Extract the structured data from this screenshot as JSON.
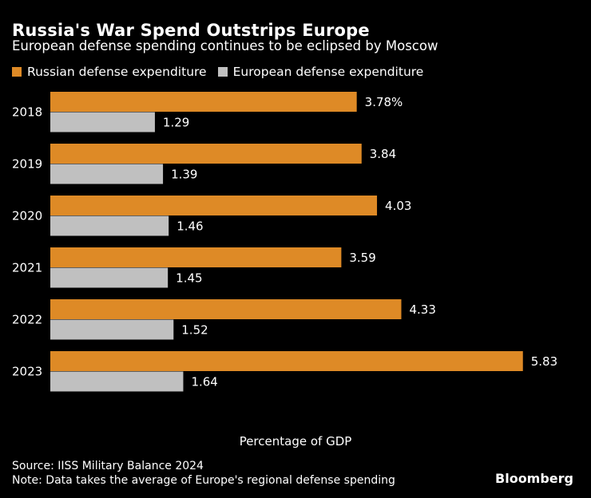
{
  "chart_data": {
    "type": "bar",
    "orientation": "horizontal",
    "title": "Russia's War Spend Outstrips Europe",
    "subtitle": "European defense spending continues to be eclipsed by Moscow",
    "categories": [
      "2018",
      "2019",
      "2020",
      "2021",
      "2022",
      "2023"
    ],
    "series": [
      {
        "name": "Russian defense expenditure",
        "color": "#de8a26",
        "values": [
          3.78,
          3.84,
          4.03,
          3.59,
          4.33,
          5.83
        ],
        "labels": [
          "3.78%",
          "3.84",
          "4.03",
          "3.59",
          "4.33",
          "5.83"
        ]
      },
      {
        "name": "European defense expenditure",
        "color": "#c0c0c0",
        "values": [
          1.29,
          1.39,
          1.46,
          1.45,
          1.52,
          1.64
        ],
        "labels": [
          "1.29",
          "1.39",
          "1.46",
          "1.45",
          "1.52",
          "1.64"
        ]
      }
    ],
    "xlabel": "Percentage of GDP",
    "xlim": [
      0,
      6.7
    ],
    "grid": false,
    "legend": "top-left"
  },
  "footer": {
    "source": "Source: IISS Military Balance 2024",
    "note": "Note: Data takes the average of Europe's regional defense spending",
    "logo": "Bloomberg"
  }
}
